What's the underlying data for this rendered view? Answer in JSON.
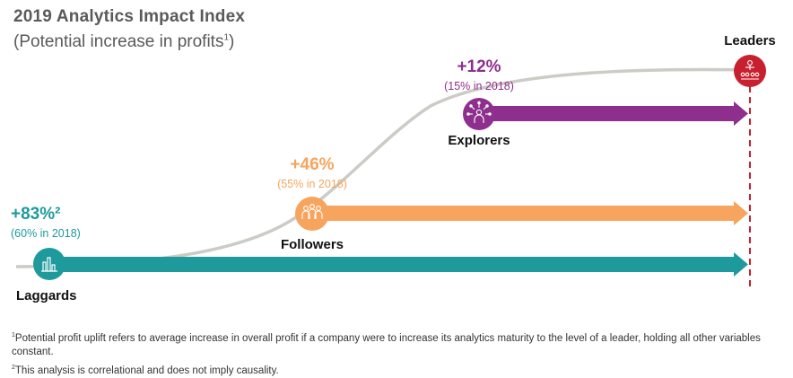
{
  "title": "2019 Analytics Impact Index",
  "subtitle": "(Potential increase in profits",
  "subtitle_sup": "1",
  "colors": {
    "laggards": "#1e9a9c",
    "followers": "#f7a45e",
    "explorers": "#8e2f8e",
    "leaders": "#c8202f",
    "curve": "#cdcbc6"
  },
  "segments": {
    "laggards": {
      "name": "Laggards",
      "pct": "+83%²",
      "prev": "(60% in 2018)",
      "icon": "bar-chart-icon"
    },
    "followers": {
      "name": "Followers",
      "pct": "+46%",
      "prev": "(55% in 2018)",
      "icon": "people-group-icon"
    },
    "explorers": {
      "name": "Explorers",
      "pct": "+12%",
      "prev": "(15% in 2018)",
      "icon": "network-person-icon"
    },
    "leaders": {
      "name": "Leaders",
      "icon": "presenter-audience-icon"
    }
  },
  "footnotes": {
    "fn1_sup": "1",
    "fn1": "Potential profit uplift refers to average increase in overall profit if a company were to increase its analytics maturity to the level of a leader, holding all other variables constant.",
    "fn2_sup": "2",
    "fn2": "This analysis is correlational and does not imply causality."
  }
}
